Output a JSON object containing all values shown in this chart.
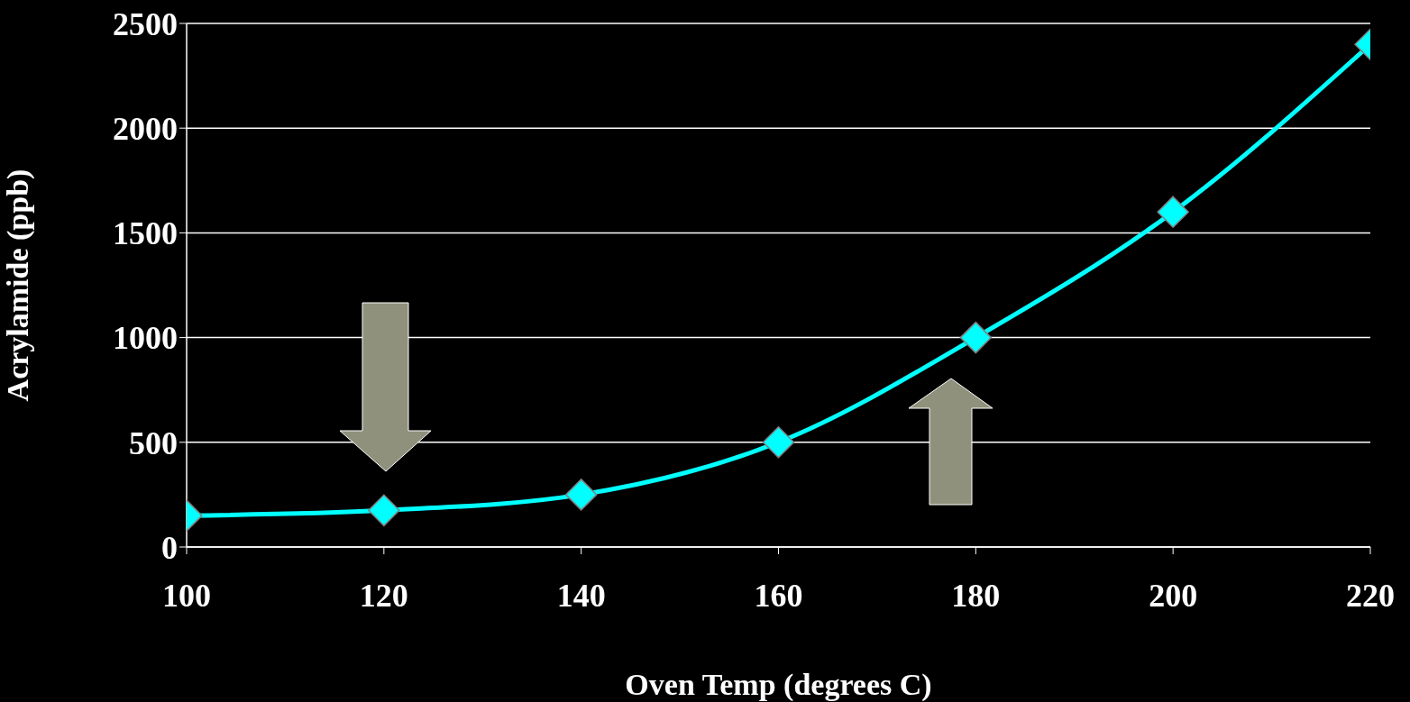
{
  "chart_data": {
    "type": "line",
    "xlabel": "Oven Temp (degrees C)",
    "ylabel": "Acrylamide (ppb)",
    "x": [
      100,
      120,
      140,
      160,
      180,
      200,
      220
    ],
    "series": [
      {
        "color": "#00ffff",
        "values": [
          150,
          175,
          250,
          500,
          1000,
          1600,
          2400
        ]
      }
    ],
    "xlim": [
      100,
      220
    ],
    "xticks": [
      100,
      120,
      140,
      160,
      180,
      200,
      220
    ],
    "ylim": [
      0,
      2500
    ],
    "yticks": [
      0,
      500,
      1000,
      1500,
      2000,
      2500
    ],
    "grid": "y",
    "marker": "diamond",
    "line_style": "solid",
    "legend": false
  }
}
